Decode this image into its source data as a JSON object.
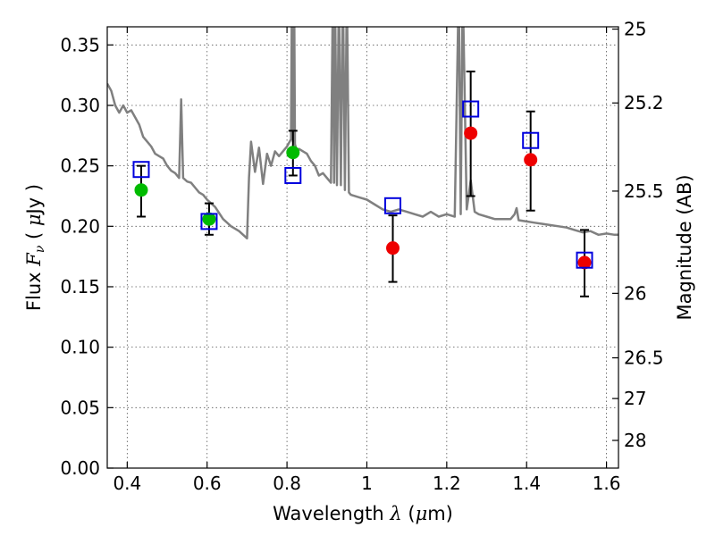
{
  "chart_data": {
    "type": "scatter",
    "xlabel_prefix": "Wavelength  ",
    "xlabel_symbol": "λ",
    "xlabel_unit_open": " (",
    "xlabel_unit_mu": "μ",
    "xlabel_unit_rest": "m)",
    "ylabel_prefix": "Flux  ",
    "ylabel_symbol": "F",
    "ylabel_subscript": "ν",
    "ylabel_unit_open": "  (  ",
    "ylabel_unit_mu": "μ",
    "ylabel_unit_rest": "Jy  )",
    "y2label": "Magnitude (AB)",
    "xlim": [
      0.35,
      1.63
    ],
    "ylim": [
      0.0,
      0.365
    ],
    "grid": true,
    "x_ticks": [
      {
        "value": 0.4,
        "label": "0.4"
      },
      {
        "value": 0.6,
        "label": "0.6"
      },
      {
        "value": 0.8,
        "label": "0.8"
      },
      {
        "value": 1.0,
        "label": "1"
      },
      {
        "value": 1.2,
        "label": "1.2"
      },
      {
        "value": 1.4,
        "label": "1.4"
      },
      {
        "value": 1.6,
        "label": "1.6"
      }
    ],
    "y_ticks": [
      {
        "value": 0.0,
        "label": "0.00"
      },
      {
        "value": 0.05,
        "label": "0.05"
      },
      {
        "value": 0.1,
        "label": "0.10"
      },
      {
        "value": 0.15,
        "label": "0.15"
      },
      {
        "value": 0.2,
        "label": "0.20"
      },
      {
        "value": 0.25,
        "label": "0.25"
      },
      {
        "value": 0.3,
        "label": "0.30"
      },
      {
        "value": 0.35,
        "label": "0.35"
      }
    ],
    "y2_ticks": [
      {
        "value": 25,
        "label": "25"
      },
      {
        "value": 25.2,
        "label": "25.2"
      },
      {
        "value": 25.5,
        "label": "25.5"
      },
      {
        "value": 26,
        "label": "26"
      },
      {
        "value": 26.5,
        "label": "26.5"
      },
      {
        "value": 27,
        "label": "27"
      },
      {
        "value": 28,
        "label": "28"
      }
    ],
    "template_spectrum": {
      "color": "#808080",
      "x": [
        0.35,
        0.36,
        0.37,
        0.38,
        0.39,
        0.4,
        0.41,
        0.42,
        0.43,
        0.44,
        0.45,
        0.46,
        0.47,
        0.48,
        0.49,
        0.5,
        0.51,
        0.52,
        0.53,
        0.535,
        0.54,
        0.55,
        0.56,
        0.57,
        0.58,
        0.59,
        0.6,
        0.62,
        0.64,
        0.66,
        0.68,
        0.7,
        0.705,
        0.71,
        0.72,
        0.73,
        0.74,
        0.75,
        0.76,
        0.77,
        0.78,
        0.79,
        0.8,
        0.81,
        0.812,
        0.815,
        0.818,
        0.82,
        0.825,
        0.83,
        0.84,
        0.85,
        0.86,
        0.87,
        0.88,
        0.89,
        0.9,
        0.91,
        0.915,
        0.918,
        0.92,
        0.925,
        0.93,
        0.935,
        0.94,
        0.945,
        0.95,
        0.955,
        0.96,
        0.98,
        1.0,
        1.02,
        1.04,
        1.06,
        1.08,
        1.1,
        1.12,
        1.14,
        1.16,
        1.18,
        1.2,
        1.22,
        1.23,
        1.235,
        1.24,
        1.25,
        1.26,
        1.27,
        1.28,
        1.3,
        1.32,
        1.34,
        1.36,
        1.37,
        1.375,
        1.38,
        1.4,
        1.42,
        1.44,
        1.46,
        1.48,
        1.5,
        1.52,
        1.54,
        1.56,
        1.58,
        1.6,
        1.62,
        1.63
      ],
      "y": [
        0.318,
        0.312,
        0.3,
        0.294,
        0.3,
        0.294,
        0.296,
        0.29,
        0.284,
        0.274,
        0.27,
        0.266,
        0.26,
        0.258,
        0.256,
        0.25,
        0.246,
        0.244,
        0.24,
        0.305,
        0.24,
        0.237,
        0.236,
        0.232,
        0.228,
        0.226,
        0.222,
        0.216,
        0.206,
        0.2,
        0.196,
        0.19,
        0.24,
        0.27,
        0.245,
        0.265,
        0.235,
        0.26,
        0.25,
        0.262,
        0.258,
        0.262,
        0.266,
        0.272,
        0.38,
        0.27,
        0.4,
        0.268,
        0.262,
        0.264,
        0.262,
        0.26,
        0.254,
        0.25,
        0.242,
        0.244,
        0.24,
        0.236,
        0.4,
        0.236,
        0.4,
        0.234,
        0.4,
        0.234,
        0.4,
        0.23,
        0.4,
        0.228,
        0.226,
        0.224,
        0.222,
        0.218,
        0.214,
        0.212,
        0.214,
        0.212,
        0.21,
        0.208,
        0.212,
        0.208,
        0.21,
        0.208,
        0.4,
        0.21,
        0.4,
        0.214,
        0.238,
        0.212,
        0.21,
        0.208,
        0.206,
        0.206,
        0.206,
        0.21,
        0.215,
        0.205,
        0.204,
        0.203,
        0.202,
        0.201,
        0.2,
        0.199,
        0.197,
        0.195,
        0.196,
        0.193,
        0.194,
        0.193,
        0.193
      ]
    },
    "series": [
      {
        "marker": "circle",
        "color": "#00bb00",
        "points": [
          {
            "x": 0.435,
            "y": 0.23,
            "err_lo": 0.208,
            "err_hi": 0.25
          },
          {
            "x": 0.605,
            "y": 0.206,
            "err_lo": 0.193,
            "err_hi": 0.219
          },
          {
            "x": 0.815,
            "y": 0.261,
            "err_lo": 0.242,
            "err_hi": 0.279
          }
        ]
      },
      {
        "marker": "circle",
        "color": "#ee0000",
        "points": [
          {
            "x": 1.065,
            "y": 0.182,
            "err_lo": 0.154,
            "err_hi": 0.209
          },
          {
            "x": 1.26,
            "y": 0.277,
            "err_lo": 0.225,
            "err_hi": 0.328
          },
          {
            "x": 1.41,
            "y": 0.255,
            "err_lo": 0.213,
            "err_hi": 0.295
          },
          {
            "x": 1.545,
            "y": 0.17,
            "err_lo": 0.142,
            "err_hi": 0.197
          }
        ]
      },
      {
        "marker": "square",
        "color": "#0000dd",
        "points": [
          {
            "x": 0.435,
            "y": 0.247
          },
          {
            "x": 0.605,
            "y": 0.204
          },
          {
            "x": 0.815,
            "y": 0.242
          },
          {
            "x": 1.065,
            "y": 0.217
          },
          {
            "x": 1.26,
            "y": 0.297
          },
          {
            "x": 1.41,
            "y": 0.271
          },
          {
            "x": 1.545,
            "y": 0.172
          }
        ]
      }
    ]
  }
}
